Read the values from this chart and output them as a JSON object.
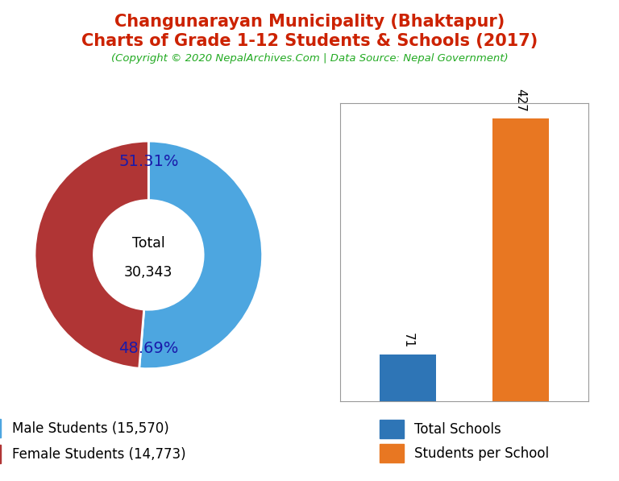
{
  "title_line1": "Changunarayan Municipality (Bhaktapur)",
  "title_line2": "Charts of Grade 1-12 Students & Schools (2017)",
  "subtitle": "(Copyright © 2020 NepalArchives.Com | Data Source: Nepal Government)",
  "title_color": "#cc2200",
  "subtitle_color": "#22aa22",
  "male_students": 15570,
  "female_students": 14773,
  "total_students": 30343,
  "male_pct": "51.31%",
  "female_pct": "48.69%",
  "male_color": "#4da6e0",
  "female_color": "#b03535",
  "pct_label_color": "#1a1aaa",
  "bar_categories": [
    "Total Schools",
    "Students per School"
  ],
  "bar_values": [
    71,
    427
  ],
  "bar_colors": [
    "#2e75b6",
    "#e87722"
  ],
  "bar_label_color": "black",
  "legend_fontsize": 12,
  "background_color": "#ffffff"
}
